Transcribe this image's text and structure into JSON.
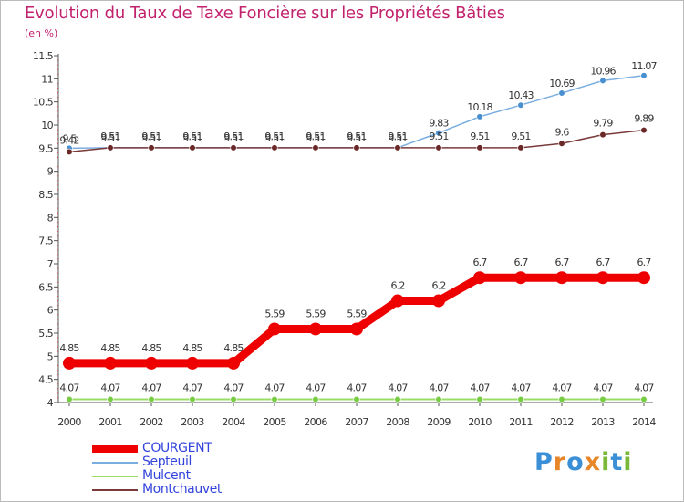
{
  "title": "Evolution du Taux de Taxe Foncière sur les Propriétés Bâties",
  "unit": "(en %)",
  "logo": [
    "P",
    "r",
    "o",
    "x",
    "i",
    "t",
    "i"
  ],
  "chart_data": {
    "type": "line",
    "title": "Evolution du Taux de Taxe Foncière sur les Propriétés Bâties",
    "ylabel": "(en %)",
    "xlabel": "",
    "ylim": [
      4,
      11.5
    ],
    "ytick_step": 0.5,
    "yticks": [
      "4",
      "4.5",
      "5",
      "5.5",
      "6",
      "6.5",
      "7",
      "7.5",
      "8",
      "8.5",
      "9",
      "9.5",
      "10",
      "10.5",
      "11",
      "11.5"
    ],
    "x": [
      "2000",
      "2001",
      "2002",
      "2003",
      "2004",
      "2005",
      "2006",
      "2007",
      "2008",
      "2009",
      "2010",
      "2011",
      "2012",
      "2013",
      "2014"
    ],
    "grid": false,
    "legend_position": "bottom-left",
    "series": [
      {
        "name": "COURGENT",
        "color": "#ee0000",
        "values": [
          4.85,
          4.85,
          4.85,
          4.85,
          4.85,
          5.59,
          5.59,
          5.59,
          6.2,
          6.2,
          6.7,
          6.7,
          6.7,
          6.7,
          6.7
        ],
        "labels": [
          "4.85",
          "4.85",
          "4.85",
          "4.85",
          "4.85",
          "5.59",
          "5.59",
          "5.59",
          "6.2",
          "6.2",
          "6.7",
          "6.7",
          "6.7",
          "6.7",
          "6.7"
        ]
      },
      {
        "name": "Septeuil",
        "color": "#7aaee0",
        "marker_color": "#4a90d0",
        "values": [
          9.5,
          9.51,
          9.51,
          9.51,
          9.51,
          9.51,
          9.51,
          9.51,
          9.51,
          9.83,
          10.18,
          10.43,
          10.69,
          10.96,
          11.07
        ],
        "labels": [
          "9.5",
          "9.51",
          "9.51",
          "9.51",
          "9.51",
          "9.51",
          "9.51",
          "9.51",
          "9.51",
          "9.83",
          "10.18",
          "10.43",
          "10.69",
          "10.96",
          "11.07"
        ]
      },
      {
        "name": "Mulcent",
        "color": "#99dd66",
        "marker_color": "#77cc44",
        "values": [
          4.07,
          4.07,
          4.07,
          4.07,
          4.07,
          4.07,
          4.07,
          4.07,
          4.07,
          4.07,
          4.07,
          4.07,
          4.07,
          4.07,
          4.07
        ],
        "labels": [
          "4.07",
          "4.07",
          "4.07",
          "4.07",
          "4.07",
          "4.07",
          "4.07",
          "4.07",
          "4.07",
          "4.07",
          "4.07",
          "4.07",
          "4.07",
          "4.07",
          "4.07"
        ]
      },
      {
        "name": "Montchauvet",
        "color": "#7a3a3a",
        "marker_color": "#6a2828",
        "values": [
          9.42,
          9.51,
          9.51,
          9.51,
          9.51,
          9.51,
          9.51,
          9.51,
          9.51,
          9.51,
          9.51,
          9.51,
          9.6,
          9.79,
          9.89
        ],
        "labels": [
          "9.42",
          "9.51",
          "9.51",
          "9.51",
          "9.51",
          "9.51",
          "9.51",
          "9.51",
          "9.51",
          "9.51",
          "9.51",
          "9.51",
          "9.6",
          "9.79",
          "9.89"
        ]
      }
    ]
  }
}
